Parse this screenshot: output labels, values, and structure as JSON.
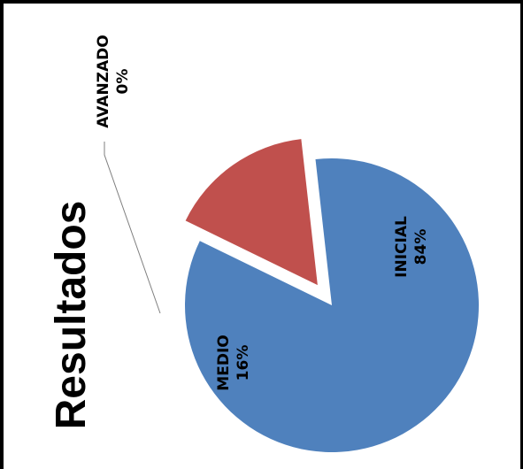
{
  "chart_data": {
    "type": "pie",
    "title": "Resultados",
    "categories": [
      "INICIAL",
      "MEDIO",
      "AVANZADO"
    ],
    "values": [
      84,
      16,
      0
    ],
    "data_labels": [
      {
        "name": "INICIAL",
        "percent": "84%"
      },
      {
        "name": "MEDIO",
        "percent": "16%"
      },
      {
        "name": "AVANZADO",
        "percent": "0%"
      }
    ],
    "colors": [
      "#4f81bd",
      "#c0504d",
      "#9bbb59"
    ],
    "exploded": true,
    "orientation": "rotated 90 degrees counter-clockwise"
  }
}
